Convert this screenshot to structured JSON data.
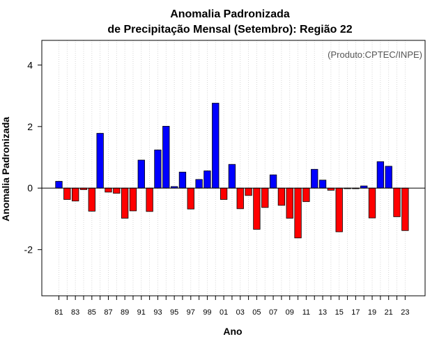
{
  "chart_data": {
    "type": "bar",
    "title_line1": "Anomalia Padronizada",
    "title_line2": "de Precipitação Mensal (Setembro): Região 22",
    "xlabel": "Ano",
    "ylabel": "Anomalia Padronizada",
    "credit": "(Produto:CPTEC/INPE)",
    "ylim": [
      -3.5,
      4.8
    ],
    "yticks": [
      -2,
      0,
      2,
      4
    ],
    "ytick_labels": [
      "-2",
      "0",
      "2",
      "4"
    ],
    "xtick_labels": [
      "81",
      "83",
      "85",
      "87",
      "89",
      "91",
      "93",
      "95",
      "97",
      "99",
      "01",
      "03",
      "05",
      "07",
      "09",
      "11",
      "13",
      "15",
      "17",
      "19",
      "21",
      "23"
    ],
    "categories": [
      "81",
      "82",
      "83",
      "84",
      "85",
      "86",
      "87",
      "88",
      "89",
      "90",
      "91",
      "92",
      "93",
      "94",
      "95",
      "96",
      "97",
      "98",
      "99",
      "00",
      "01",
      "02",
      "03",
      "04",
      "05",
      "06",
      "07",
      "08",
      "09",
      "10",
      "11",
      "12",
      "13",
      "14",
      "15",
      "16",
      "17",
      "18",
      "19",
      "20",
      "21",
      "22",
      "23"
    ],
    "values": [
      0.22,
      -0.37,
      -0.42,
      -0.05,
      -0.75,
      1.78,
      -0.13,
      -0.17,
      -0.98,
      -0.74,
      0.91,
      -0.76,
      1.24,
      2.01,
      0.05,
      0.52,
      -0.68,
      0.28,
      0.56,
      2.76,
      -0.37,
      0.77,
      -0.67,
      -0.24,
      -1.34,
      -0.63,
      0.43,
      -0.56,
      -0.98,
      -1.62,
      -0.44,
      0.61,
      0.26,
      -0.07,
      -1.42,
      -0.02,
      -0.02,
      0.07,
      -0.97,
      0.86,
      0.71,
      -0.93,
      -1.38
    ],
    "positive_color": "#0000ff",
    "negative_color": "#ff0000"
  }
}
